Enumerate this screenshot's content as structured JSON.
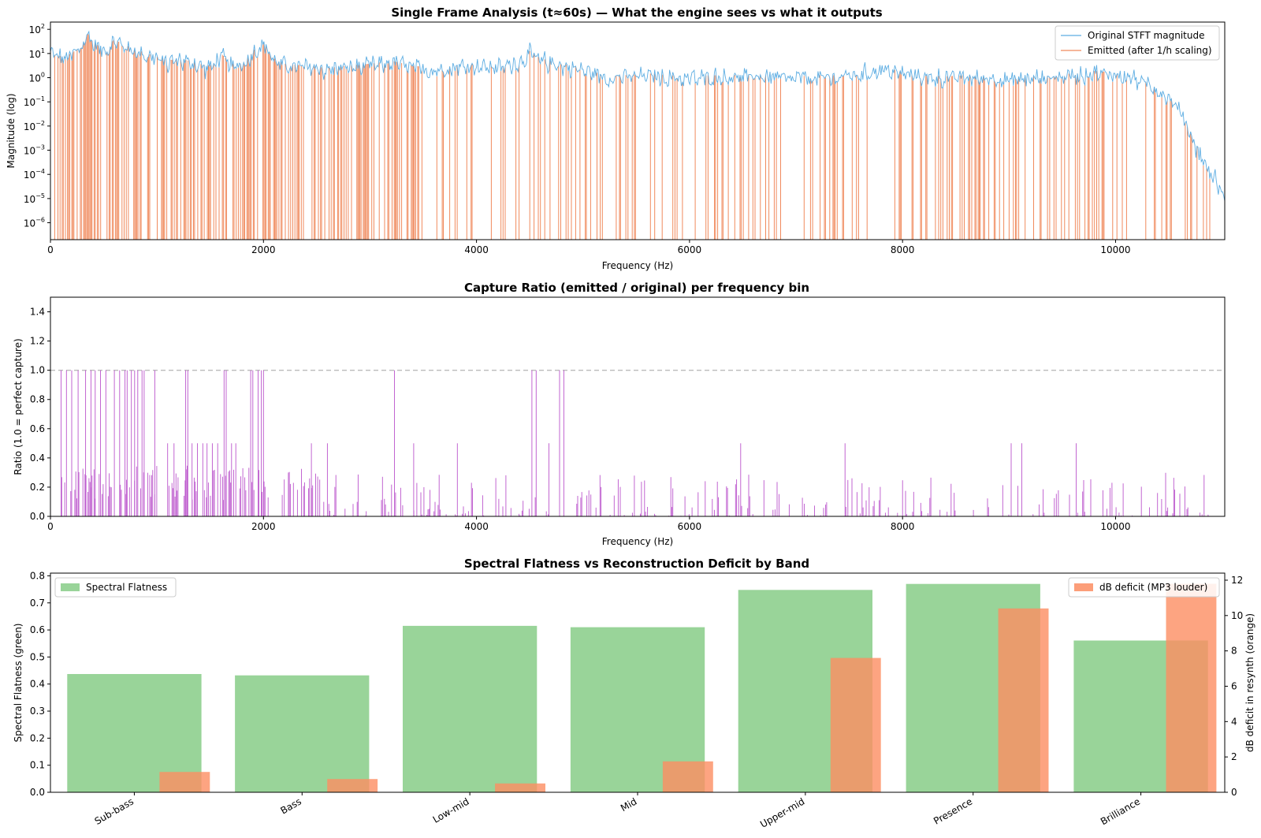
{
  "chart_data": [
    {
      "type": "line",
      "title": "Single Frame Analysis (t≈60s) — What the engine sees vs what it outputs",
      "xlabel": "Frequency (Hz)",
      "ylabel": "Magnitude (log)",
      "xlim": [
        0,
        11025
      ],
      "ylim_log10": [
        -6.7,
        2.3
      ],
      "yscale": "log",
      "xticks": [
        0,
        2000,
        4000,
        6000,
        8000,
        10000
      ],
      "yticks": [
        "10^2",
        "10^1",
        "10^0",
        "10^-1",
        "10^-2",
        "10^-3",
        "10^-4",
        "10^-5",
        "10^-6"
      ],
      "legend_position": "top-right",
      "series": [
        {
          "name": "Original STFT magnitude",
          "color": "#5dade2",
          "envelope": {
            "x": [
              0,
              100,
              200,
              300,
              350,
              400,
              500,
              600,
              700,
              800,
              900,
              1000,
              1100,
              1200,
              1300,
              1400,
              1500,
              1600,
              1700,
              1800,
              1900,
              2000,
              2100,
              2200,
              2400,
              2600,
              2800,
              3000,
              3200,
              3400,
              3600,
              3800,
              4000,
              4200,
              4400,
              4500,
              4600,
              4800,
              5000,
              5200,
              5400,
              5600,
              5800,
              6000,
              6200,
              6400,
              6600,
              6800,
              7000,
              7200,
              7400,
              7600,
              7800,
              8000,
              8200,
              8400,
              8600,
              8800,
              9000,
              9200,
              9400,
              9600,
              9800,
              10000,
              10200,
              10400,
              10500,
              10600,
              10700,
              10800,
              10900,
              11000,
              11025
            ],
            "y": [
              10,
              6,
              8,
              20,
              60,
              25,
              12,
              30,
              18,
              12,
              8,
              6,
              4,
              5,
              4,
              3,
              2.5,
              8,
              3,
              3,
              10,
              25,
              5,
              3,
              2.5,
              2,
              2.5,
              3,
              4,
              2.5,
              2,
              2.5,
              3,
              2.5,
              4,
              10,
              5,
              3,
              2,
              1,
              1,
              1.2,
              1,
              0.9,
              1,
              1,
              1.1,
              1,
              0.9,
              1,
              1,
              1.3,
              2,
              1.5,
              1,
              0.9,
              1,
              0.9,
              0.8,
              0.9,
              1,
              1.2,
              1.5,
              1.3,
              0.8,
              0.3,
              0.15,
              0.05,
              0.005,
              0.0005,
              0.0001,
              2e-05,
              5e-06
            ]
          }
        },
        {
          "name": "Emitted (after 1/h scaling)",
          "color": "#f08a5d",
          "note_visual": "vertical line spikes from the bottom of the axis up to the original magnitude at sparse bins",
          "density_sparse_above_hz": 3500,
          "last_emitted_hz": 10900
        }
      ]
    },
    {
      "type": "line",
      "title": "Capture Ratio (emitted / original) per frequency bin",
      "xlabel": "Frequency (Hz)",
      "ylabel": "Ratio (1.0 = perfect capture)",
      "xlim": [
        0,
        11025
      ],
      "ylim": [
        0,
        1.5
      ],
      "xticks": [
        0,
        2000,
        4000,
        6000,
        8000,
        10000
      ],
      "yticks": [
        "0.0",
        "0.2",
        "0.4",
        "0.6",
        "0.8",
        "1.0",
        "1.2",
        "1.4"
      ],
      "reference_line": {
        "y": 1.0,
        "style": "dashed",
        "color": "#bbbbbb"
      },
      "series": [
        {
          "name": "",
          "color": "#bb55cc",
          "spikes_at_1": [
            100,
            150,
            200,
            260,
            330,
            380,
            420,
            470,
            520,
            600,
            650,
            700,
            720,
            760,
            790,
            820,
            860,
            880,
            980,
            1270,
            1290,
            1630,
            1650,
            1880,
            1900,
            1950,
            1980,
            2000,
            3230,
            4520,
            4560,
            4780,
            4820
          ],
          "spikes_at_0_5": [
            1100,
            1160,
            1330,
            1380,
            1430,
            1470,
            1520,
            1570,
            1700,
            1740,
            2450,
            2600,
            3410,
            3820,
            4680,
            6480,
            7460,
            9020,
            9120,
            9630
          ],
          "typical_max_above_2500hz": 0.3
        }
      ]
    },
    {
      "type": "bar",
      "title": "Spectral Flatness vs Reconstruction Deficit by Band",
      "categories": [
        "Sub-bass",
        "Bass",
        "Low-mid",
        "Mid",
        "Upper-mid",
        "Presence",
        "Brilliance"
      ],
      "ylabel": "Spectral Flatness (green)",
      "ylabel_right": "dB deficit in resynth (orange)",
      "ylim": [
        0,
        0.81
      ],
      "ylim_right": [
        0,
        12.4
      ],
      "yticks": [
        "0.0",
        "0.1",
        "0.2",
        "0.3",
        "0.4",
        "0.5",
        "0.6",
        "0.7",
        "0.8"
      ],
      "yticks_right": [
        "0",
        "2",
        "4",
        "6",
        "8",
        "10",
        "12"
      ],
      "series": [
        {
          "name": "Spectral Flatness",
          "axis": "left",
          "color": "#7fc97f",
          "values": [
            0.437,
            0.432,
            0.615,
            0.61,
            0.748,
            0.77,
            0.561
          ],
          "legend_position": "top-left"
        },
        {
          "name": "dB deficit (MP3 louder)",
          "axis": "right",
          "color": "#fc8d62",
          "values": [
            1.15,
            0.75,
            0.5,
            1.75,
            7.6,
            10.4,
            11.8
          ],
          "legend_position": "top-right"
        }
      ]
    }
  ]
}
